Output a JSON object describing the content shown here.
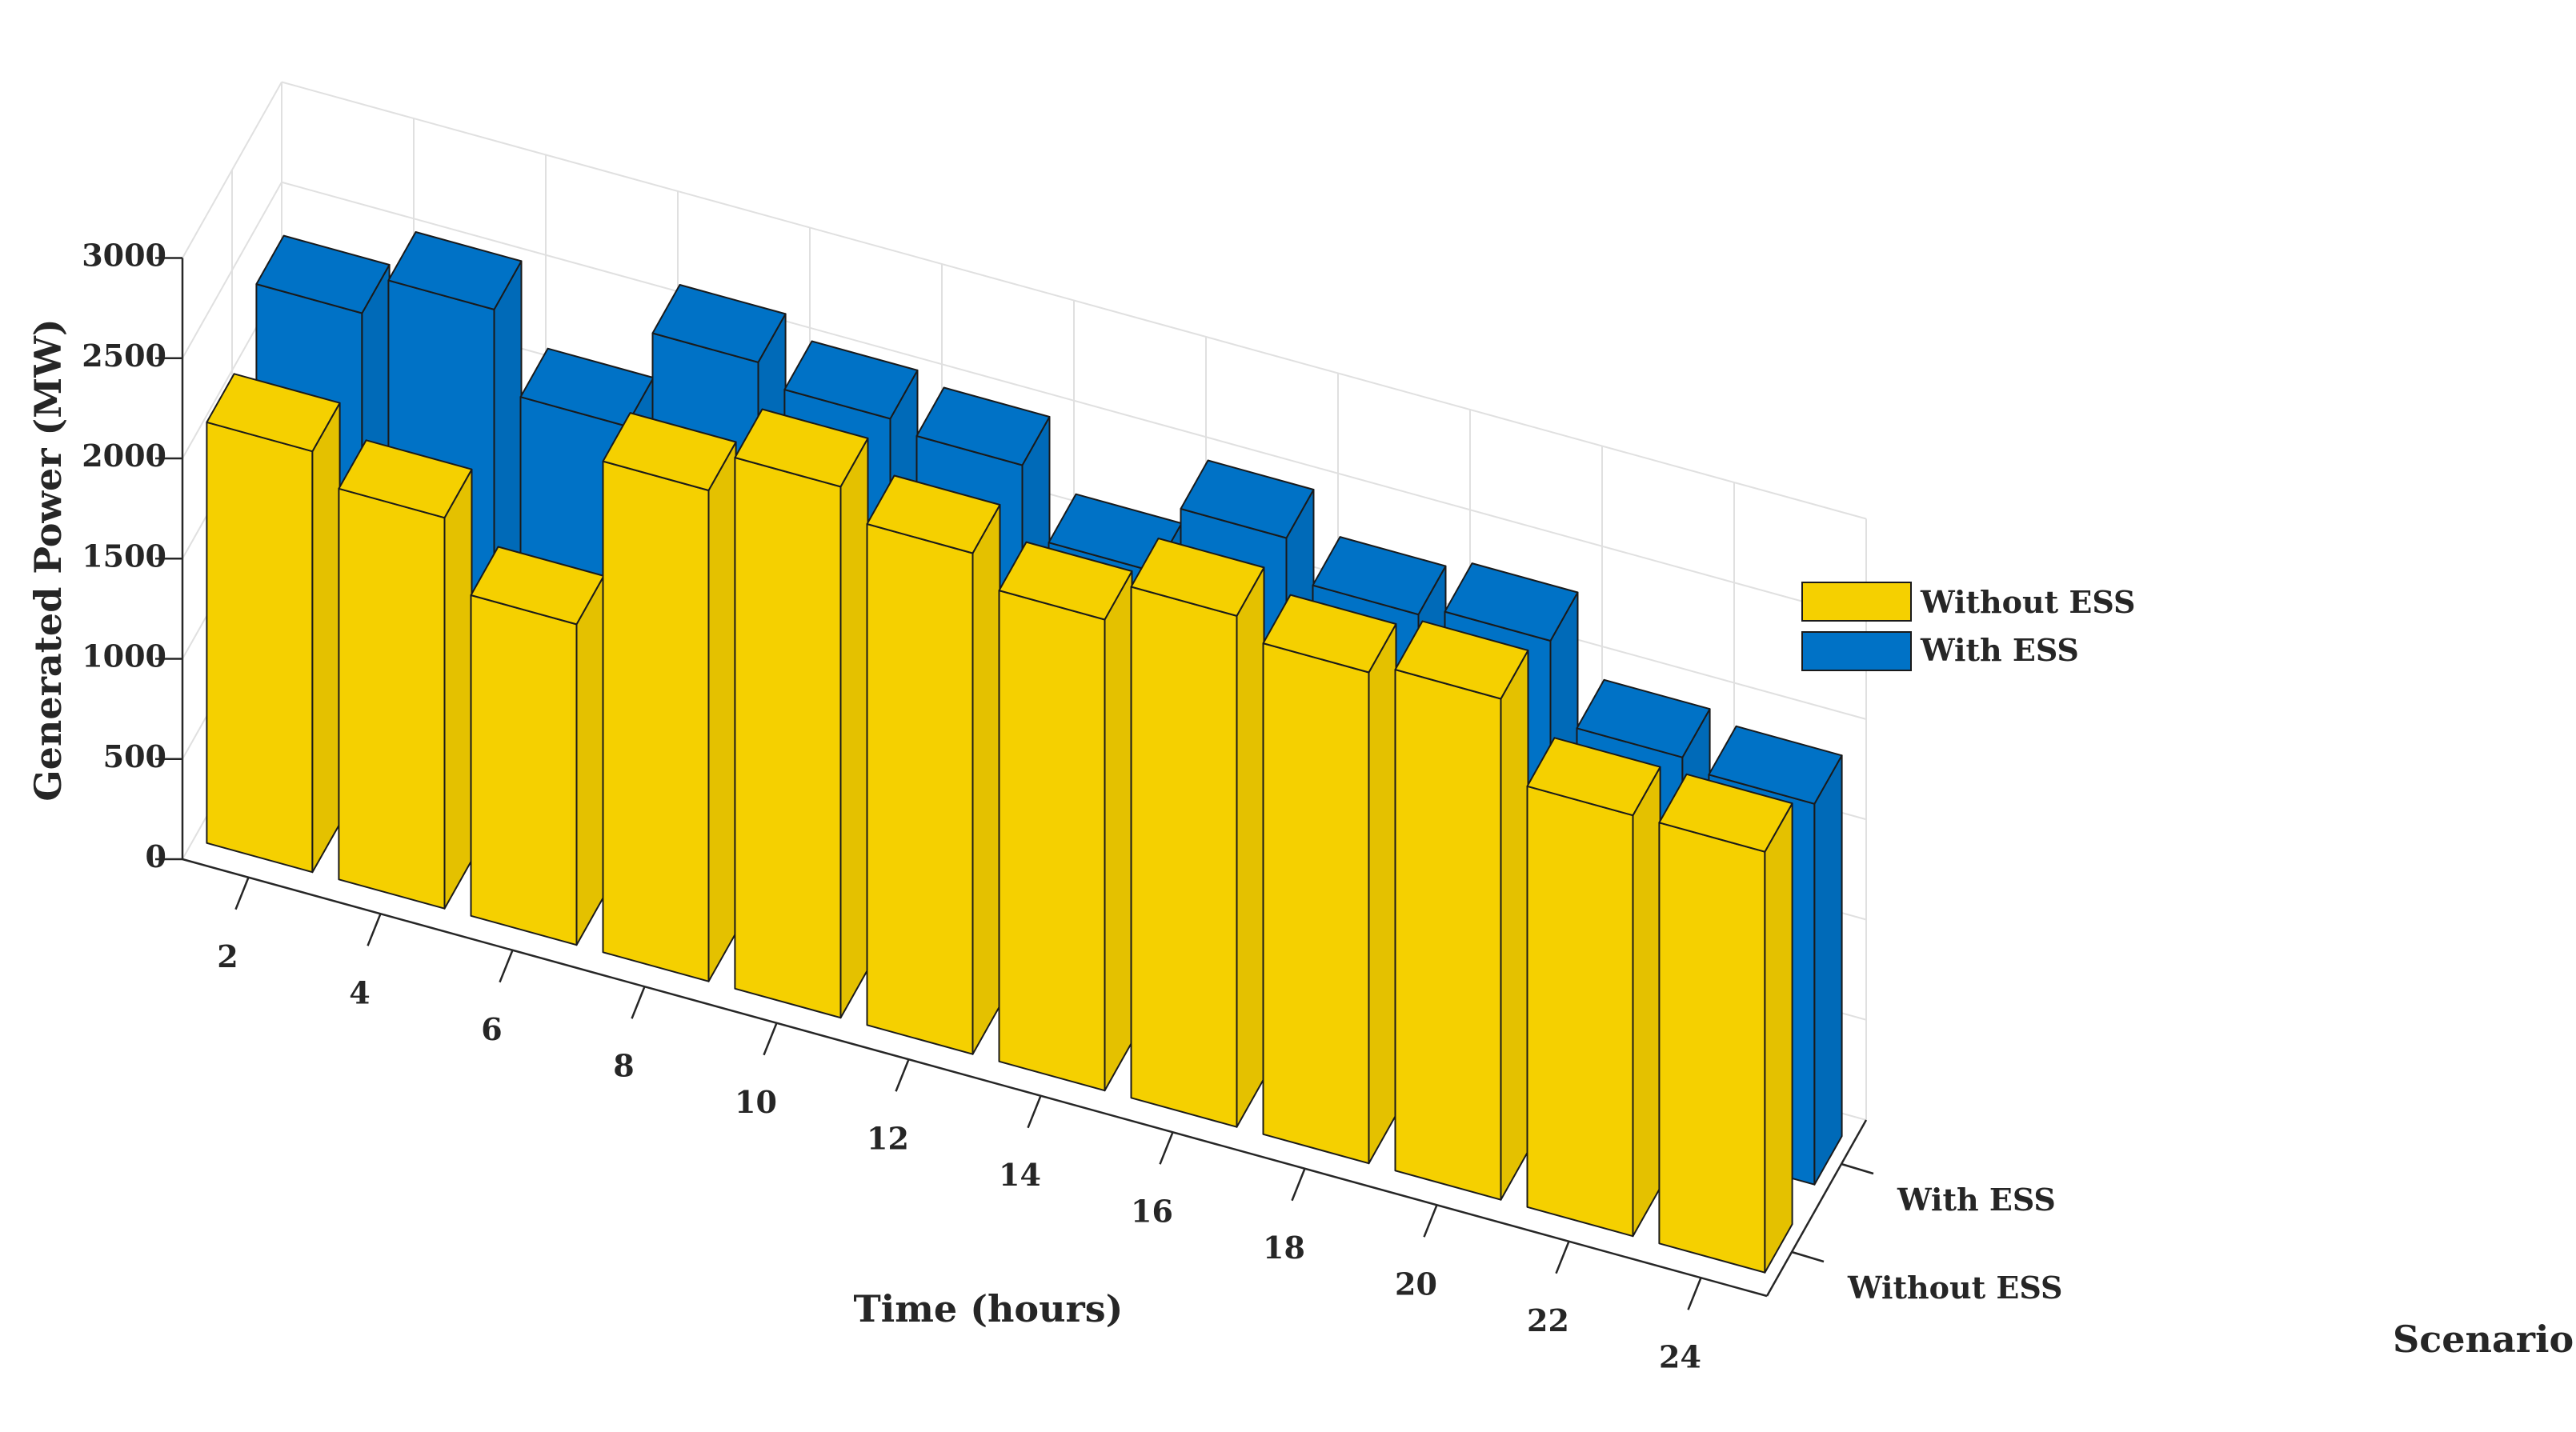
{
  "chart_data": {
    "type": "bar",
    "variant": "3d-grouped",
    "x": [
      2,
      4,
      6,
      8,
      10,
      12,
      14,
      16,
      18,
      20,
      22,
      24
    ],
    "xlabel": "Time (hours)",
    "ylabel": "Scenario",
    "zlabel": "Generated Power (MW)",
    "zlim": [
      0,
      3000
    ],
    "zticks": [
      0,
      500,
      1000,
      1500,
      2000,
      2500,
      3000
    ],
    "scenarios": [
      "Without ESS",
      "With ESS"
    ],
    "series": [
      {
        "name": "Without ESS",
        "color": "#F5D000",
        "values": [
          2100,
          1950,
          1600,
          2450,
          2650,
          2500,
          2350,
          2550,
          2450,
          2500,
          2100,
          2100
        ]
      },
      {
        "name": "With ESS",
        "color": "#0072C6",
        "values": [
          2350,
          2550,
          2150,
          2650,
          2550,
          2500,
          2150,
          2500,
          2300,
          2350,
          1950,
          1900
        ]
      }
    ],
    "legend": {
      "position": "right",
      "entries": [
        "Without ESS",
        "With ESS"
      ]
    },
    "grid": true
  }
}
